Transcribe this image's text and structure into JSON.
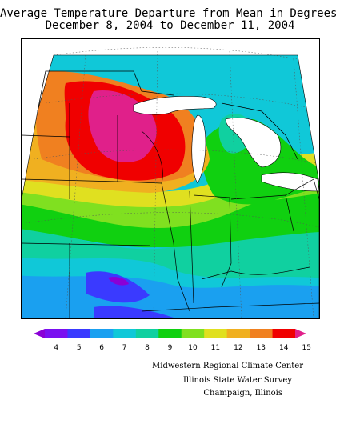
{
  "title": {
    "line1": "Average Temperature Departure from Mean in Degrees F",
    "line2": "December 8, 2004 to December 11, 2004"
  },
  "legend": {
    "ticks": [
      "4",
      "5",
      "6",
      "7",
      "8",
      "9",
      "10",
      "11",
      "12",
      "13",
      "14",
      "15"
    ],
    "colors": [
      "#8a00d6",
      "#7a10f0",
      "#3a3aff",
      "#1aa0f0",
      "#10c8d8",
      "#10d0a0",
      "#10d010",
      "#80e020",
      "#e0e020",
      "#f0b020",
      "#f08020",
      "#f00000",
      "#e0208a"
    ]
  },
  "credits": {
    "line1": "Midwestern Regional Climate Center",
    "line2": "Illinois State Water Survey",
    "line3": "Champaign, Illinois"
  },
  "map": {
    "variable": "Average temperature departure from mean",
    "units": "degrees F",
    "region": "Midwest United States"
  }
}
